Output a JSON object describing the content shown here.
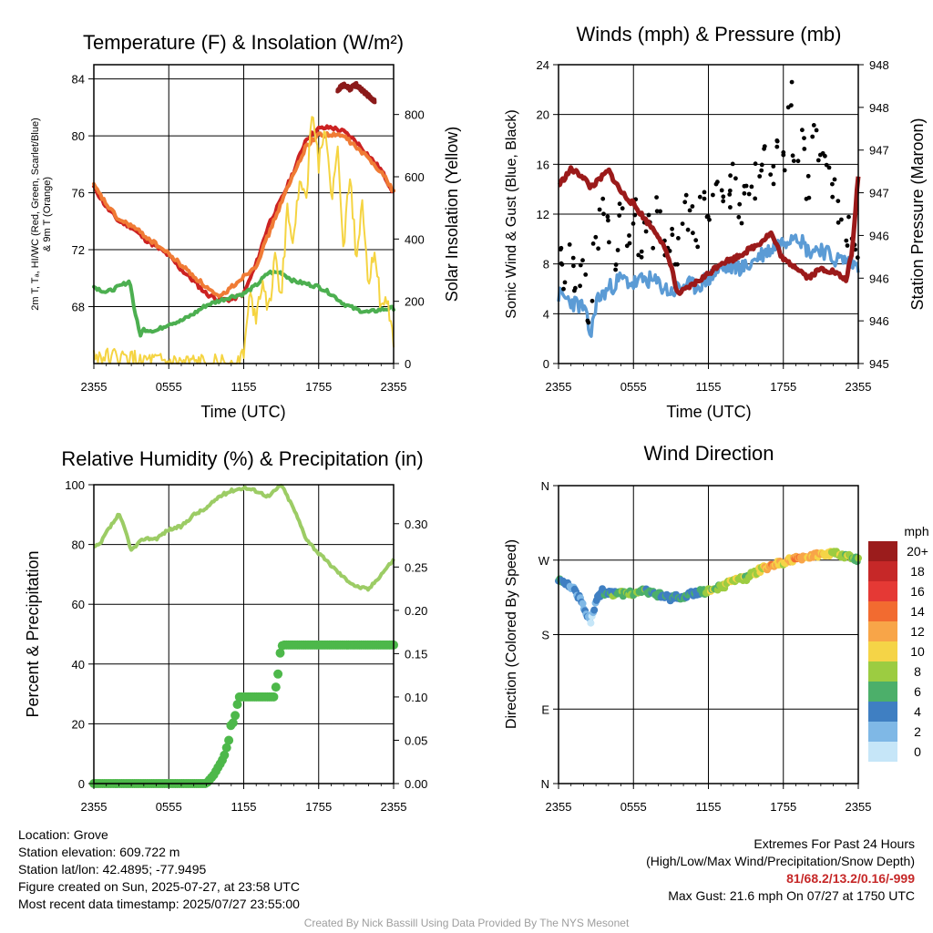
{
  "panels": {
    "temp": {
      "title": "Temperature (F) & Insolation (W/m²)",
      "ylabel_left_line1": "2m T, Tₐ, HI/WC (Red, Green, Scarlet/Blue)",
      "ylabel_left_line2": "& 9m T (Orange)",
      "ylabel_right": "Solar Insolation (Yellow)",
      "xlabel": "Time (UTC)"
    },
    "wind": {
      "title": "Winds (mph) & Pressure (mb)",
      "ylabel_left": "Sonic Wind & Gust (Blue, Black)",
      "ylabel_right": "Station Pressure (Maroon)",
      "xlabel": "Time (UTC)"
    },
    "rh": {
      "title": "Relative Humidity (%) & Precipitation (in)",
      "ylabel_left": "Percent & Precipitation"
    },
    "dir": {
      "title": "Wind Direction",
      "ylabel_left": "Direction (Colored By Speed)",
      "legend_title": "mph"
    }
  },
  "info_left": {
    "location": "Location: Grove",
    "elevation": "Station elevation: 609.722 m",
    "latlon": "Station lat/lon: 42.4895; -77.9495",
    "created": "Figure created on Sun, 2025-07-27, at 23:58 UTC",
    "recent": "Most recent data timestamp: 2025/07/27 23:55:00"
  },
  "info_right": {
    "heading": "Extremes For Past 24 Hours",
    "subheading": "(High/Low/Max Wind/Precipitation/Snow Depth)",
    "values": "81/68.2/13.2/0.16/-999",
    "gust": "Max Gust: 21.6 mph On 07/27 at 1750 UTC"
  },
  "credit": "Created By Nick Bassill Using Data Provided By The NYS Mesonet",
  "colors": {
    "temp": "#cc2222",
    "heat_index": "#8b1a1a",
    "temp_9m": "#f07b35",
    "dewpoint": "#4caf50",
    "solar": "#f5d442",
    "wind": "#5b9bd5",
    "gust": "#000000",
    "pressure": "#9b1a1a",
    "rh": "#9ccc65",
    "precip": "#4db84a"
  },
  "chart_data": [
    {
      "id": "temp",
      "type": "line",
      "x_ticks": [
        "2355",
        "0555",
        "1155",
        "1755",
        "2355"
      ],
      "x_hours": [
        0,
        6,
        12,
        18,
        24
      ],
      "ylim": [
        64,
        85
      ],
      "y_ticks": [
        68,
        72,
        76,
        80,
        84
      ],
      "y2lim": [
        0,
        960
      ],
      "y2_ticks": [
        0,
        200,
        400,
        600,
        800
      ],
      "series": [
        {
          "name": "2m T",
          "color": "#cc2222",
          "axis": "left",
          "x": [
            0,
            1,
            2,
            3,
            4,
            5,
            6,
            7,
            8,
            9,
            10,
            11,
            12,
            13,
            14,
            15,
            16,
            17,
            18,
            19,
            20,
            21,
            22,
            23,
            24
          ],
          "y": [
            76.4,
            75.0,
            74.0,
            73.6,
            72.8,
            72.2,
            71.6,
            70.6,
            69.8,
            68.9,
            68.5,
            68.5,
            68.9,
            71.0,
            73.8,
            75.5,
            77.5,
            79.8,
            80.5,
            80.6,
            80.3,
            79.6,
            78.6,
            77.6,
            76.0
          ]
        },
        {
          "name": "9m T",
          "color": "#f07b35",
          "axis": "left",
          "x": [
            0,
            1,
            2,
            3,
            6,
            10,
            13,
            15,
            17,
            18,
            20,
            22,
            23,
            24
          ],
          "y": [
            76.5,
            75.2,
            74.1,
            73.7,
            71.7,
            68.6,
            70.9,
            75.3,
            79.3,
            80.1,
            80.0,
            78.4,
            77.5,
            76.1
          ]
        },
        {
          "name": "HI",
          "color": "#8b1a1a",
          "axis": "left",
          "x": [
            19.5,
            20,
            20.5,
            21,
            21.5,
            22,
            22.5
          ],
          "y": [
            83.2,
            83.6,
            83.3,
            83.6,
            83.2,
            82.8,
            82.4
          ]
        },
        {
          "name": "Td",
          "color": "#4caf50",
          "axis": "left",
          "x": [
            0,
            1,
            2,
            2.9,
            3.2,
            3.7,
            4,
            5,
            6,
            7,
            8,
            9,
            10,
            11,
            12,
            13,
            14,
            15,
            16,
            17,
            18,
            19,
            20,
            21,
            22,
            23,
            24
          ],
          "y": [
            69.4,
            69.0,
            69.4,
            69.8,
            68.0,
            66.0,
            66.4,
            66.3,
            66.8,
            67.0,
            67.5,
            68.1,
            68.4,
            68.7,
            68.9,
            69.5,
            70.4,
            70.4,
            69.8,
            69.6,
            69.4,
            68.9,
            68.2,
            67.8,
            67.6,
            67.8,
            67.9
          ]
        },
        {
          "name": "Solar",
          "color": "#f5d442",
          "axis": "right",
          "x": [
            0,
            6,
            11.5,
            12,
            12.5,
            13,
            13.5,
            14,
            14.5,
            15,
            15.5,
            16,
            16.5,
            17,
            17.5,
            18,
            18.5,
            19,
            19.5,
            20,
            20.5,
            21,
            21.5,
            22,
            22.5,
            23,
            23.5,
            24
          ],
          "y": [
            25,
            0,
            0,
            40,
            220,
            150,
            280,
            170,
            330,
            220,
            500,
            380,
            620,
            520,
            840,
            640,
            780,
            520,
            690,
            380,
            610,
            350,
            520,
            260,
            380,
            160,
            210,
            60
          ]
        }
      ]
    },
    {
      "id": "wind",
      "type": "line",
      "x_ticks": [
        "2355",
        "0555",
        "1155",
        "1755",
        "2355"
      ],
      "x_hours": [
        0,
        6,
        12,
        18,
        24
      ],
      "ylim": [
        0,
        24
      ],
      "y_ticks": [
        0,
        4,
        8,
        12,
        16,
        20,
        24
      ],
      "y2_tick_labels": [
        "945",
        "946",
        "946",
        "946",
        "947",
        "947",
        "948",
        "948"
      ],
      "series": [
        {
          "name": "Sonic Wind",
          "color": "#5b9bd5",
          "x": [
            0,
            1,
            2,
            2.6,
            3,
            4,
            5,
            6,
            7,
            8,
            9,
            10,
            11,
            12,
            13,
            14,
            15,
            16,
            17,
            18,
            19,
            20,
            21,
            22,
            23,
            24
          ],
          "y": [
            5.5,
            5.0,
            4.5,
            2.2,
            5.0,
            6.0,
            6.8,
            6.4,
            6.8,
            6.4,
            5.7,
            6.3,
            6.2,
            6.8,
            7.6,
            7.8,
            7.7,
            8.6,
            9.2,
            9.8,
            10.6,
            9.0,
            9.3,
            8.4,
            8.3,
            7.8
          ]
        },
        {
          "name": "Gust",
          "color": "#000000",
          "points": true,
          "x": [
            0,
            0.5,
            1,
            1.5,
            2,
            2.5,
            3,
            3.5,
            4,
            4.5,
            5,
            5.5,
            6,
            6.5,
            7,
            7.5,
            8,
            8.5,
            9,
            9.5,
            10,
            10.5,
            11,
            11.5,
            12,
            12.5,
            13,
            13.5,
            14,
            14.5,
            15,
            15.5,
            16,
            16.5,
            17,
            17.5,
            18,
            18.5,
            19,
            19.5,
            20,
            20.5,
            21,
            21.5,
            22,
            22.5,
            23,
            23.5,
            24
          ],
          "y": [
            8.5,
            7.0,
            8.8,
            6.5,
            7.2,
            4.2,
            9.5,
            12.2,
            10.8,
            8.4,
            11.7,
            9.3,
            12.1,
            8.7,
            11.5,
            10.4,
            12.6,
            9.6,
            10.2,
            8.9,
            12.4,
            11.6,
            9.8,
            13.8,
            11.2,
            14.7,
            12.9,
            13.6,
            15.1,
            12.3,
            14.5,
            13.7,
            15.4,
            16.9,
            14.8,
            17.3,
            16.2,
            21.6,
            15.9,
            17.8,
            14.2,
            18.3,
            15.8,
            16.7,
            14.1,
            12.3,
            10.6,
            9.2,
            8.8
          ]
        },
        {
          "name": "Pressure",
          "color": "#9b1a1a",
          "x": [
            0,
            1,
            2,
            2.5,
            3,
            4,
            5,
            6,
            7,
            8,
            9,
            9.5,
            10,
            11,
            12,
            13,
            14,
            15,
            16,
            17,
            18,
            19,
            20,
            21,
            22,
            23,
            23.5,
            24
          ],
          "y": [
            14.3,
            15.6,
            15.0,
            14.2,
            14.5,
            15.5,
            13.8,
            12.8,
            11.5,
            10.3,
            8.0,
            5.6,
            5.8,
            6.5,
            7.2,
            8.1,
            8.4,
            9.0,
            9.6,
            10.5,
            8.3,
            7.8,
            6.9,
            7.6,
            7.4,
            6.7,
            8.8,
            15.2
          ]
        }
      ]
    },
    {
      "id": "rh",
      "type": "line",
      "x_ticks": [
        "2355",
        "0555",
        "1155",
        "1755",
        "2355"
      ],
      "x_hours": [
        0,
        6,
        12,
        18,
        24
      ],
      "ylim": [
        0,
        100
      ],
      "y_ticks": [
        0,
        20,
        40,
        60,
        80,
        100
      ],
      "y2_ticks": [
        0.0,
        0.05,
        0.1,
        0.15,
        0.2,
        0.25,
        0.3
      ],
      "y2_tick_labels": [
        "0.00",
        "0.05",
        "0.10",
        "0.15",
        "0.20",
        "0.25",
        "0.30"
      ],
      "series": [
        {
          "name": "RH",
          "color": "#9ccc65",
          "x": [
            0,
            0.5,
            1,
            1.5,
            2,
            2.5,
            3,
            3.5,
            4,
            5,
            6,
            7,
            8,
            9,
            10,
            11,
            12,
            13,
            14,
            15,
            16,
            17,
            18,
            19,
            20,
            21,
            22,
            23,
            24
          ],
          "y": [
            79,
            80,
            84,
            87,
            90,
            85,
            78,
            80,
            82,
            82,
            85,
            86,
            90,
            92,
            96,
            98,
            99,
            98,
            96,
            100,
            92,
            82,
            77,
            73,
            69,
            66,
            65,
            70,
            75
          ]
        },
        {
          "name": "Precip",
          "color": "#4db84a",
          "axis": "right",
          "x": [
            0,
            9,
            9.6,
            10,
            10.4,
            10.8,
            11,
            11.2,
            11.6,
            12,
            13,
            14.4,
            14.7,
            14.9,
            15.1,
            16,
            24
          ],
          "y": [
            0.0,
            0.0,
            0.01,
            0.02,
            0.03,
            0.05,
            0.07,
            0.07,
            0.1,
            0.1,
            0.1,
            0.1,
            0.12,
            0.15,
            0.16,
            0.16,
            0.16
          ]
        }
      ]
    },
    {
      "id": "dir",
      "type": "scatter",
      "x_ticks": [
        "2355",
        "0555",
        "1155",
        "1755",
        "2355"
      ],
      "x_hours": [
        0,
        6,
        12,
        18,
        24
      ],
      "y_tick_labels": [
        "N",
        "E",
        "S",
        "W",
        "N"
      ],
      "ylim": [
        0,
        360
      ],
      "points": [
        {
          "x": 0,
          "dir": 245,
          "speed": 4
        },
        {
          "x": 0.5,
          "dir": 242,
          "speed": 4
        },
        {
          "x": 1,
          "dir": 238,
          "speed": 3
        },
        {
          "x": 1.5,
          "dir": 228,
          "speed": 3
        },
        {
          "x": 2,
          "dir": 215,
          "speed": 2
        },
        {
          "x": 2.3,
          "dir": 205,
          "speed": 2
        },
        {
          "x": 2.6,
          "dir": 195,
          "speed": 1
        },
        {
          "x": 3,
          "dir": 222,
          "speed": 3
        },
        {
          "x": 3.5,
          "dir": 232,
          "speed": 4
        },
        {
          "x": 4,
          "dir": 230,
          "speed": 6
        },
        {
          "x": 5,
          "dir": 229,
          "speed": 6
        },
        {
          "x": 6,
          "dir": 231,
          "speed": 7
        },
        {
          "x": 7,
          "dir": 232,
          "speed": 6
        },
        {
          "x": 8,
          "dir": 228,
          "speed": 5
        },
        {
          "x": 9,
          "dir": 224,
          "speed": 4
        },
        {
          "x": 10,
          "dir": 227,
          "speed": 5
        },
        {
          "x": 11,
          "dir": 230,
          "speed": 4
        },
        {
          "x": 12,
          "dir": 233,
          "speed": 8
        },
        {
          "x": 13,
          "dir": 238,
          "speed": 7
        },
        {
          "x": 14,
          "dir": 244,
          "speed": 9
        },
        {
          "x": 15,
          "dir": 248,
          "speed": 8
        },
        {
          "x": 16,
          "dir": 257,
          "speed": 9
        },
        {
          "x": 17,
          "dir": 263,
          "speed": 12
        },
        {
          "x": 18,
          "dir": 267,
          "speed": 10
        },
        {
          "x": 19,
          "dir": 272,
          "speed": 13
        },
        {
          "x": 20,
          "dir": 275,
          "speed": 11
        },
        {
          "x": 21,
          "dir": 277,
          "speed": 12
        },
        {
          "x": 22,
          "dir": 278,
          "speed": 9
        },
        {
          "x": 23,
          "dir": 275,
          "speed": 8
        },
        {
          "x": 24,
          "dir": 270,
          "speed": 7
        }
      ],
      "legend": {
        "labels": [
          "20+",
          "18",
          "16",
          "14",
          "12",
          "10",
          "8",
          "6",
          "4",
          "2",
          "0"
        ],
        "colors": [
          "#9b1c1c",
          "#c62828",
          "#e53935",
          "#f26b30",
          "#f8a548",
          "#f5d447",
          "#9ccc41",
          "#4caf6a",
          "#3f7fc2",
          "#7fb8e6",
          "#c6e6f8"
        ]
      }
    }
  ]
}
